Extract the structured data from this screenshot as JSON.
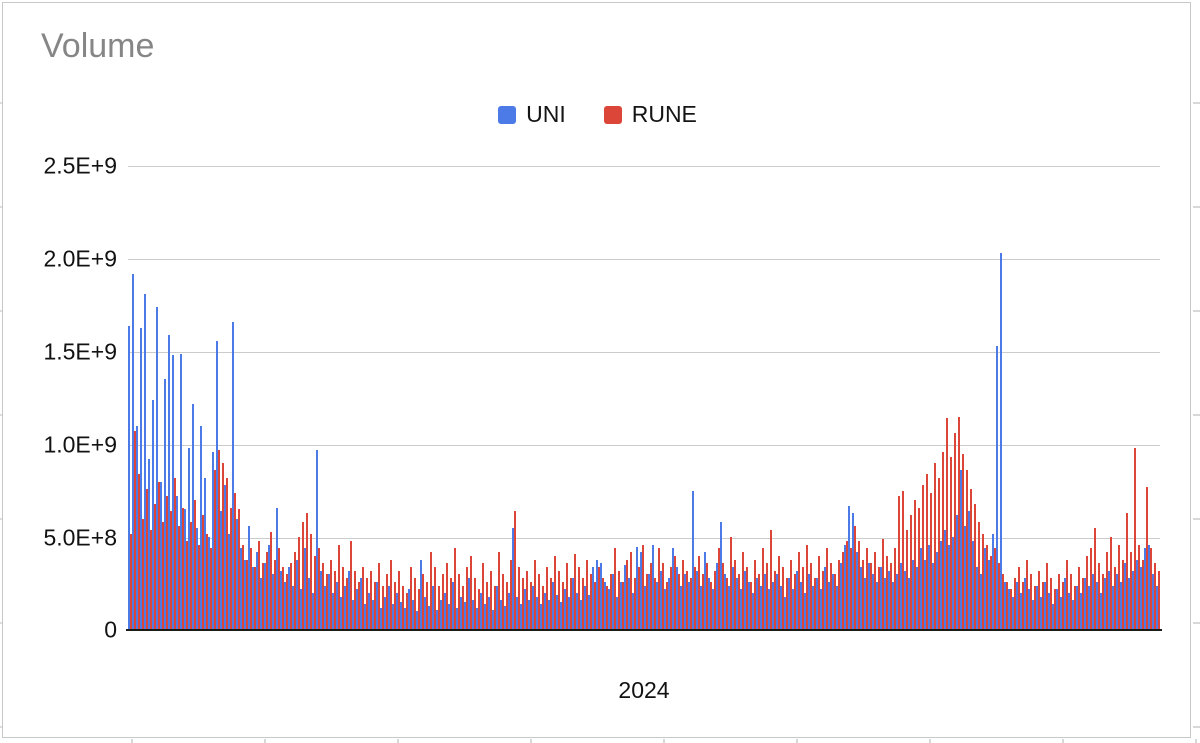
{
  "page": {
    "title": "Volume",
    "x_axis_label": "2024"
  },
  "colors": {
    "uni": "#4C7BE8",
    "rune": "#DB4639",
    "gridline": "#cccccc",
    "title_gray": "#868686"
  },
  "chart_data": {
    "type": "bar",
    "title": "Volume",
    "xlabel": "2024",
    "ylabel": "",
    "legend_position": "top-center",
    "grid": true,
    "ylim": [
      0,
      2500000000
    ],
    "y_ticks": [
      "2.5E+9",
      "2.0E+9",
      "1.5E+9",
      "1.0E+9",
      "5.0E+8",
      "0"
    ],
    "value_unit": 100000000,
    "units_note": "values are in multiples of 1E+8 (value_unit)",
    "series": [
      {
        "name": "UNI",
        "color": "#4C7BE8",
        "values": [
          16.4,
          19.2,
          11.0,
          16.3,
          18.1,
          9.2,
          12.4,
          17.4,
          8.0,
          13.5,
          15.9,
          14.8,
          7.2,
          14.9,
          6.5,
          9.8,
          12.2,
          5.5,
          11.0,
          8.2,
          5.0,
          9.6,
          15.6,
          6.4,
          7.8,
          5.2,
          16.6,
          6.0,
          4.4,
          3.8,
          5.6,
          3.4,
          4.2,
          2.8,
          3.6,
          4.6,
          3.0,
          6.6,
          3.2,
          2.6,
          3.4,
          2.4,
          3.8,
          2.2,
          4.4,
          2.8,
          2.0,
          9.7,
          3.2,
          2.4,
          3.0,
          2.0,
          2.6,
          1.8,
          2.4,
          3.2,
          1.6,
          2.2,
          2.8,
          1.4,
          2.0,
          1.6,
          2.6,
          1.2,
          1.8,
          2.4,
          1.4,
          2.0,
          1.5,
          1.2,
          2.2,
          1.6,
          1.0,
          3.8,
          1.8,
          1.3,
          2.4,
          1.1,
          1.6,
          2.0,
          1.4,
          2.6,
          1.2,
          1.8,
          1.5,
          2.8,
          1.6,
          1.2,
          2.0,
          1.4,
          1.8,
          1.1,
          2.4,
          1.6,
          1.3,
          2.0,
          5.5,
          1.8,
          1.4,
          2.2,
          1.6,
          2.4,
          1.8,
          1.4,
          2.0,
          1.6,
          2.6,
          1.9,
          1.5,
          2.2,
          1.8,
          2.8,
          2.0,
          1.6,
          2.4,
          1.9,
          3.4,
          3.8,
          3.6,
          2.6,
          2.2,
          3.0,
          1.8,
          2.6,
          3.5,
          2.8,
          2.0,
          4.5,
          4.2,
          2.4,
          3.0,
          4.6,
          2.6,
          3.2,
          2.2,
          2.8,
          4.4,
          3.4,
          2.4,
          3.0,
          2.6,
          7.5,
          3.2,
          2.4,
          4.2,
          2.8,
          2.2,
          3.6,
          5.8,
          3.0,
          2.4,
          3.4,
          2.8,
          2.2,
          3.2,
          2.6,
          2.0,
          2.8,
          2.4,
          3.0,
          2.2,
          2.6,
          3.0,
          2.4,
          1.8,
          2.8,
          2.2,
          3.2,
          2.6,
          2.0,
          3.0,
          2.4,
          2.8,
          2.2,
          3.4,
          2.6,
          3.0,
          2.4,
          3.6,
          4.6,
          6.7,
          6.3,
          4.2,
          3.4,
          2.8,
          3.6,
          3.0,
          2.6,
          3.4,
          2.8,
          3.2,
          2.6,
          3.0,
          3.6,
          3.2,
          2.8,
          3.8,
          3.4,
          4.4,
          3.8,
          4.6,
          3.6,
          4.2,
          4.8,
          5.4,
          4.6,
          5.0,
          6.2,
          8.6,
          5.6,
          6.4,
          4.8,
          3.4,
          3.0,
          4.4,
          3.8,
          5.2,
          15.3,
          20.3,
          2.6,
          2.2,
          1.8,
          2.6,
          2.0,
          2.8,
          2.2,
          1.6,
          2.4,
          1.8,
          2.6,
          2.0,
          1.4,
          2.2,
          1.8,
          2.8,
          2.0,
          1.6,
          2.4,
          2.0,
          2.8,
          2.4,
          3.0,
          2.6,
          2.0,
          2.8,
          3.2,
          2.4,
          3.0,
          2.6,
          3.6,
          2.8,
          3.2,
          3.8,
          3.4,
          4.4,
          4.6,
          3.0,
          2.4
        ]
      },
      {
        "name": "RUNE",
        "color": "#DB4639",
        "values": [
          5.2,
          10.7,
          8.4,
          6.0,
          7.6,
          5.4,
          6.8,
          8.0,
          5.8,
          7.2,
          6.4,
          8.2,
          5.6,
          6.6,
          4.8,
          5.8,
          7.0,
          4.6,
          6.2,
          5.2,
          4.4,
          8.6,
          9.7,
          9.0,
          8.2,
          6.6,
          7.4,
          6.5,
          4.6,
          3.8,
          4.4,
          3.4,
          4.8,
          3.6,
          4.2,
          5.3,
          3.8,
          4.4,
          3.4,
          3.0,
          3.6,
          4.2,
          5.0,
          5.8,
          6.3,
          5.2,
          4.0,
          4.4,
          3.6,
          3.0,
          3.8,
          3.2,
          4.6,
          3.4,
          2.8,
          4.8,
          3.2,
          2.6,
          3.4,
          2.8,
          3.2,
          2.6,
          3.6,
          2.4,
          3.0,
          3.8,
          2.6,
          3.2,
          2.4,
          2.0,
          3.4,
          2.8,
          2.2,
          3.0,
          2.6,
          4.2,
          3.4,
          2.4,
          3.0,
          3.6,
          2.8,
          4.4,
          3.0,
          2.4,
          3.4,
          4.0,
          2.8,
          2.2,
          3.6,
          2.6,
          3.2,
          2.4,
          4.2,
          3.0,
          2.6,
          3.8,
          6.4,
          3.4,
          2.8,
          3.2,
          2.6,
          3.8,
          3.0,
          2.4,
          3.4,
          2.8,
          4.0,
          3.2,
          2.6,
          3.6,
          2.8,
          4.1,
          3.4,
          2.8,
          3.8,
          3.0,
          2.6,
          3.4,
          2.8,
          2.4,
          3.0,
          4.4,
          3.2,
          2.6,
          3.8,
          4.2,
          2.8,
          3.4,
          4.6,
          3.0,
          3.6,
          2.8,
          4.4,
          3.6,
          2.6,
          3.4,
          4.0,
          3.0,
          3.8,
          3.2,
          2.8,
          3.4,
          4.0,
          3.0,
          3.6,
          2.6,
          3.2,
          4.4,
          3.6,
          2.8,
          5.0,
          3.8,
          3.0,
          4.2,
          3.4,
          2.6,
          3.8,
          3.0,
          4.4,
          3.6,
          5.4,
          3.2,
          4.0,
          3.4,
          2.8,
          3.8,
          3.0,
          4.2,
          3.4,
          4.6,
          3.6,
          2.8,
          4.0,
          3.2,
          4.4,
          3.6,
          3.0,
          3.8,
          4.2,
          4.8,
          4.4,
          5.6,
          4.8,
          3.8,
          4.4,
          3.6,
          4.2,
          3.4,
          4.9,
          4.0,
          3.6,
          4.4,
          7.2,
          7.5,
          5.4,
          6.2,
          7.0,
          6.6,
          7.8,
          8.4,
          7.4,
          9.0,
          8.2,
          9.6,
          11.4,
          9.3,
          10.6,
          11.5,
          9.5,
          8.6,
          7.6,
          6.8,
          5.8,
          5.2,
          4.6,
          4.0,
          4.4,
          3.6,
          3.0,
          2.6,
          2.2,
          2.8,
          3.4,
          2.6,
          3.8,
          3.0,
          2.4,
          3.2,
          2.6,
          3.6,
          2.8,
          2.2,
          3.0,
          2.6,
          3.8,
          3.0,
          2.4,
          3.4,
          2.8,
          4.0,
          4.4,
          5.5,
          3.6,
          3.0,
          4.2,
          5.0,
          3.4,
          4.6,
          3.8,
          6.3,
          4.2,
          9.8,
          4.6,
          3.8,
          7.7,
          4.4,
          3.6,
          3.2
        ]
      }
    ]
  }
}
